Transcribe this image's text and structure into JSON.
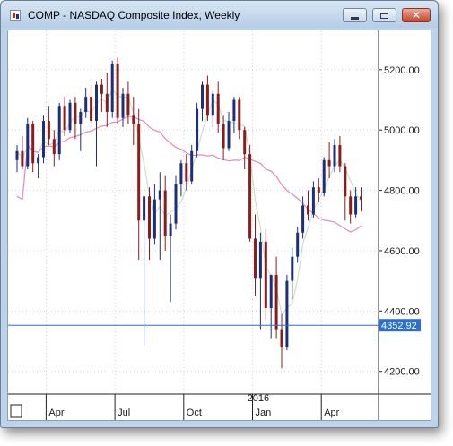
{
  "window": {
    "title": "COMP - NASDAQ Composite Index, Weekly",
    "app_icon": "chart-app-icon",
    "buttons": {
      "minimize": "minimize-icon",
      "maximize": "maximize-icon",
      "close": "close-icon",
      "close_glyph": "✕"
    }
  },
  "chart_data": {
    "type": "candlestick",
    "symbol": "COMP",
    "name": "NASDAQ Composite Index",
    "interval": "Weekly",
    "ylim": [
      4125,
      5330
    ],
    "y_ticks": [
      "5200.00",
      "5000.00",
      "4800.00",
      "4600.00",
      "4400.00",
      "4200.00"
    ],
    "x_tick_labels": [
      "Apr",
      "Jul",
      "Oct",
      "Jan",
      "Apr"
    ],
    "year_label": "2016",
    "horizontal_line": {
      "value": 4352.92,
      "label": "4352.92",
      "color": "#2b6fd0"
    },
    "colors": {
      "up": "#1c2f7e",
      "down": "#8b1c1c",
      "ma_fast": "#c8e0c8",
      "ma_slow": "#e48ab4",
      "grid": "#d0d0d0"
    },
    "candles": [
      [
        4900,
        4950,
        4860,
        4930
      ],
      [
        4930,
        4980,
        4870,
        4880
      ],
      [
        4880,
        5040,
        4870,
        5020
      ],
      [
        5020,
        5030,
        4860,
        4890
      ],
      [
        4890,
        4920,
        4840,
        4910
      ],
      [
        4910,
        5050,
        4890,
        5030
      ],
      [
        5030,
        5080,
        4950,
        4970
      ],
      [
        4970,
        5000,
        4880,
        4920
      ],
      [
        4920,
        5090,
        4900,
        5080
      ],
      [
        5080,
        5110,
        4980,
        5000
      ],
      [
        5000,
        5100,
        4990,
        5090
      ],
      [
        5090,
        5110,
        4970,
        5020
      ],
      [
        5020,
        5070,
        4930,
        5060
      ],
      [
        5060,
        5140,
        5040,
        5110
      ],
      [
        5110,
        5150,
        5010,
        5030
      ],
      [
        5030,
        5160,
        4880,
        5150
      ],
      [
        5150,
        5170,
        5060,
        5120
      ],
      [
        5120,
        5190,
        5010,
        5060
      ],
      [
        5060,
        5230,
        5040,
        5220
      ],
      [
        5220,
        5240,
        5020,
        5040
      ],
      [
        5040,
        5140,
        5010,
        5120
      ],
      [
        5120,
        5160,
        5020,
        5050
      ],
      [
        5050,
        5110,
        4950,
        5020
      ],
      [
        5020,
        5070,
        4570,
        4700
      ],
      [
        4700,
        4780,
        4290,
        4780
      ],
      [
        4780,
        4810,
        4570,
        4640
      ],
      [
        4640,
        4820,
        4620,
        4770
      ],
      [
        4770,
        4860,
        4570,
        4800
      ],
      [
        4800,
        4850,
        4600,
        4650
      ],
      [
        4650,
        4720,
        4430,
        4690
      ],
      [
        4690,
        4850,
        4670,
        4820
      ],
      [
        4820,
        4900,
        4780,
        4890
      ],
      [
        4890,
        4920,
        4800,
        4830
      ],
      [
        4830,
        4950,
        4820,
        4930
      ],
      [
        4930,
        5090,
        4910,
        5070
      ],
      [
        5070,
        5160,
        5030,
        5150
      ],
      [
        5150,
        5180,
        5030,
        5050
      ],
      [
        5050,
        5130,
        5010,
        5120
      ],
      [
        5120,
        5160,
        4990,
        5020
      ],
      [
        5020,
        5050,
        4900,
        4940
      ],
      [
        4940,
        5060,
        4930,
        5030
      ],
      [
        5030,
        5110,
        4990,
        5100
      ],
      [
        5100,
        5110,
        4970,
        5000
      ],
      [
        5000,
        5010,
        4870,
        4920
      ],
      [
        4920,
        4950,
        4630,
        4640
      ],
      [
        4640,
        4720,
        4450,
        4510
      ],
      [
        4510,
        4660,
        4340,
        4630
      ],
      [
        4630,
        4670,
        4370,
        4410
      ],
      [
        4410,
        4520,
        4310,
        4520
      ],
      [
        4520,
        4580,
        4310,
        4340
      ],
      [
        4340,
        4390,
        4210,
        4280
      ],
      [
        4280,
        4520,
        4270,
        4500
      ],
      [
        4500,
        4610,
        4440,
        4580
      ],
      [
        4580,
        4680,
        4560,
        4660
      ],
      [
        4660,
        4780,
        4640,
        4750
      ],
      [
        4750,
        4800,
        4700,
        4720
      ],
      [
        4720,
        4830,
        4710,
        4810
      ],
      [
        4810,
        4840,
        4760,
        4790
      ],
      [
        4790,
        4910,
        4780,
        4900
      ],
      [
        4900,
        4960,
        4840,
        4880
      ],
      [
        4880,
        4970,
        4860,
        4950
      ],
      [
        4950,
        4980,
        4860,
        4880
      ],
      [
        4880,
        4890,
        4700,
        4780
      ],
      [
        4780,
        4800,
        4690,
        4720
      ],
      [
        4720,
        4810,
        4710,
        4780
      ],
      [
        4780,
        4810,
        4730,
        4770
      ]
    ]
  }
}
